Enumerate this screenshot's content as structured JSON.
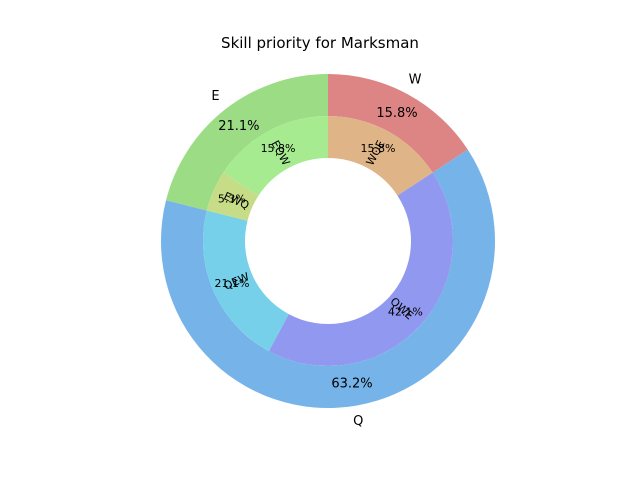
{
  "chart_data": {
    "type": "pie",
    "subtype": "nested-donut",
    "title": "Skill priority for Marksman",
    "outer_ring": {
      "slices": [
        {
          "label": "W",
          "value": 15.8,
          "pct_label": "15.8%",
          "color": "#dd8585"
        },
        {
          "label": "Q",
          "value": 63.2,
          "pct_label": "63.2%",
          "color": "#75b3e9"
        },
        {
          "label": "E",
          "value": 21.1,
          "pct_label": "21.1%",
          "color": "#9bdc85"
        }
      ]
    },
    "inner_ring": {
      "slices": [
        {
          "label": "WQE",
          "value": 15.8,
          "pct_label": "15.8%",
          "color": "#dfb487"
        },
        {
          "label": "QWE",
          "value": 42.1,
          "pct_label": "42.1%",
          "color": "#9198ef"
        },
        {
          "label": "QEW",
          "value": 21.1,
          "pct_label": "21.1%",
          "color": "#76d0e9"
        },
        {
          "label": "EWQ",
          "value": 5.3,
          "pct_label": "5.3%",
          "color": "#c7dc86"
        },
        {
          "label": "EQW",
          "value": 15.8,
          "pct_label": "15.8%",
          "color": "#a6eb90"
        }
      ]
    },
    "start_angle_deg": 90,
    "direction": "clockwise",
    "legend": "none",
    "grid": false
  }
}
